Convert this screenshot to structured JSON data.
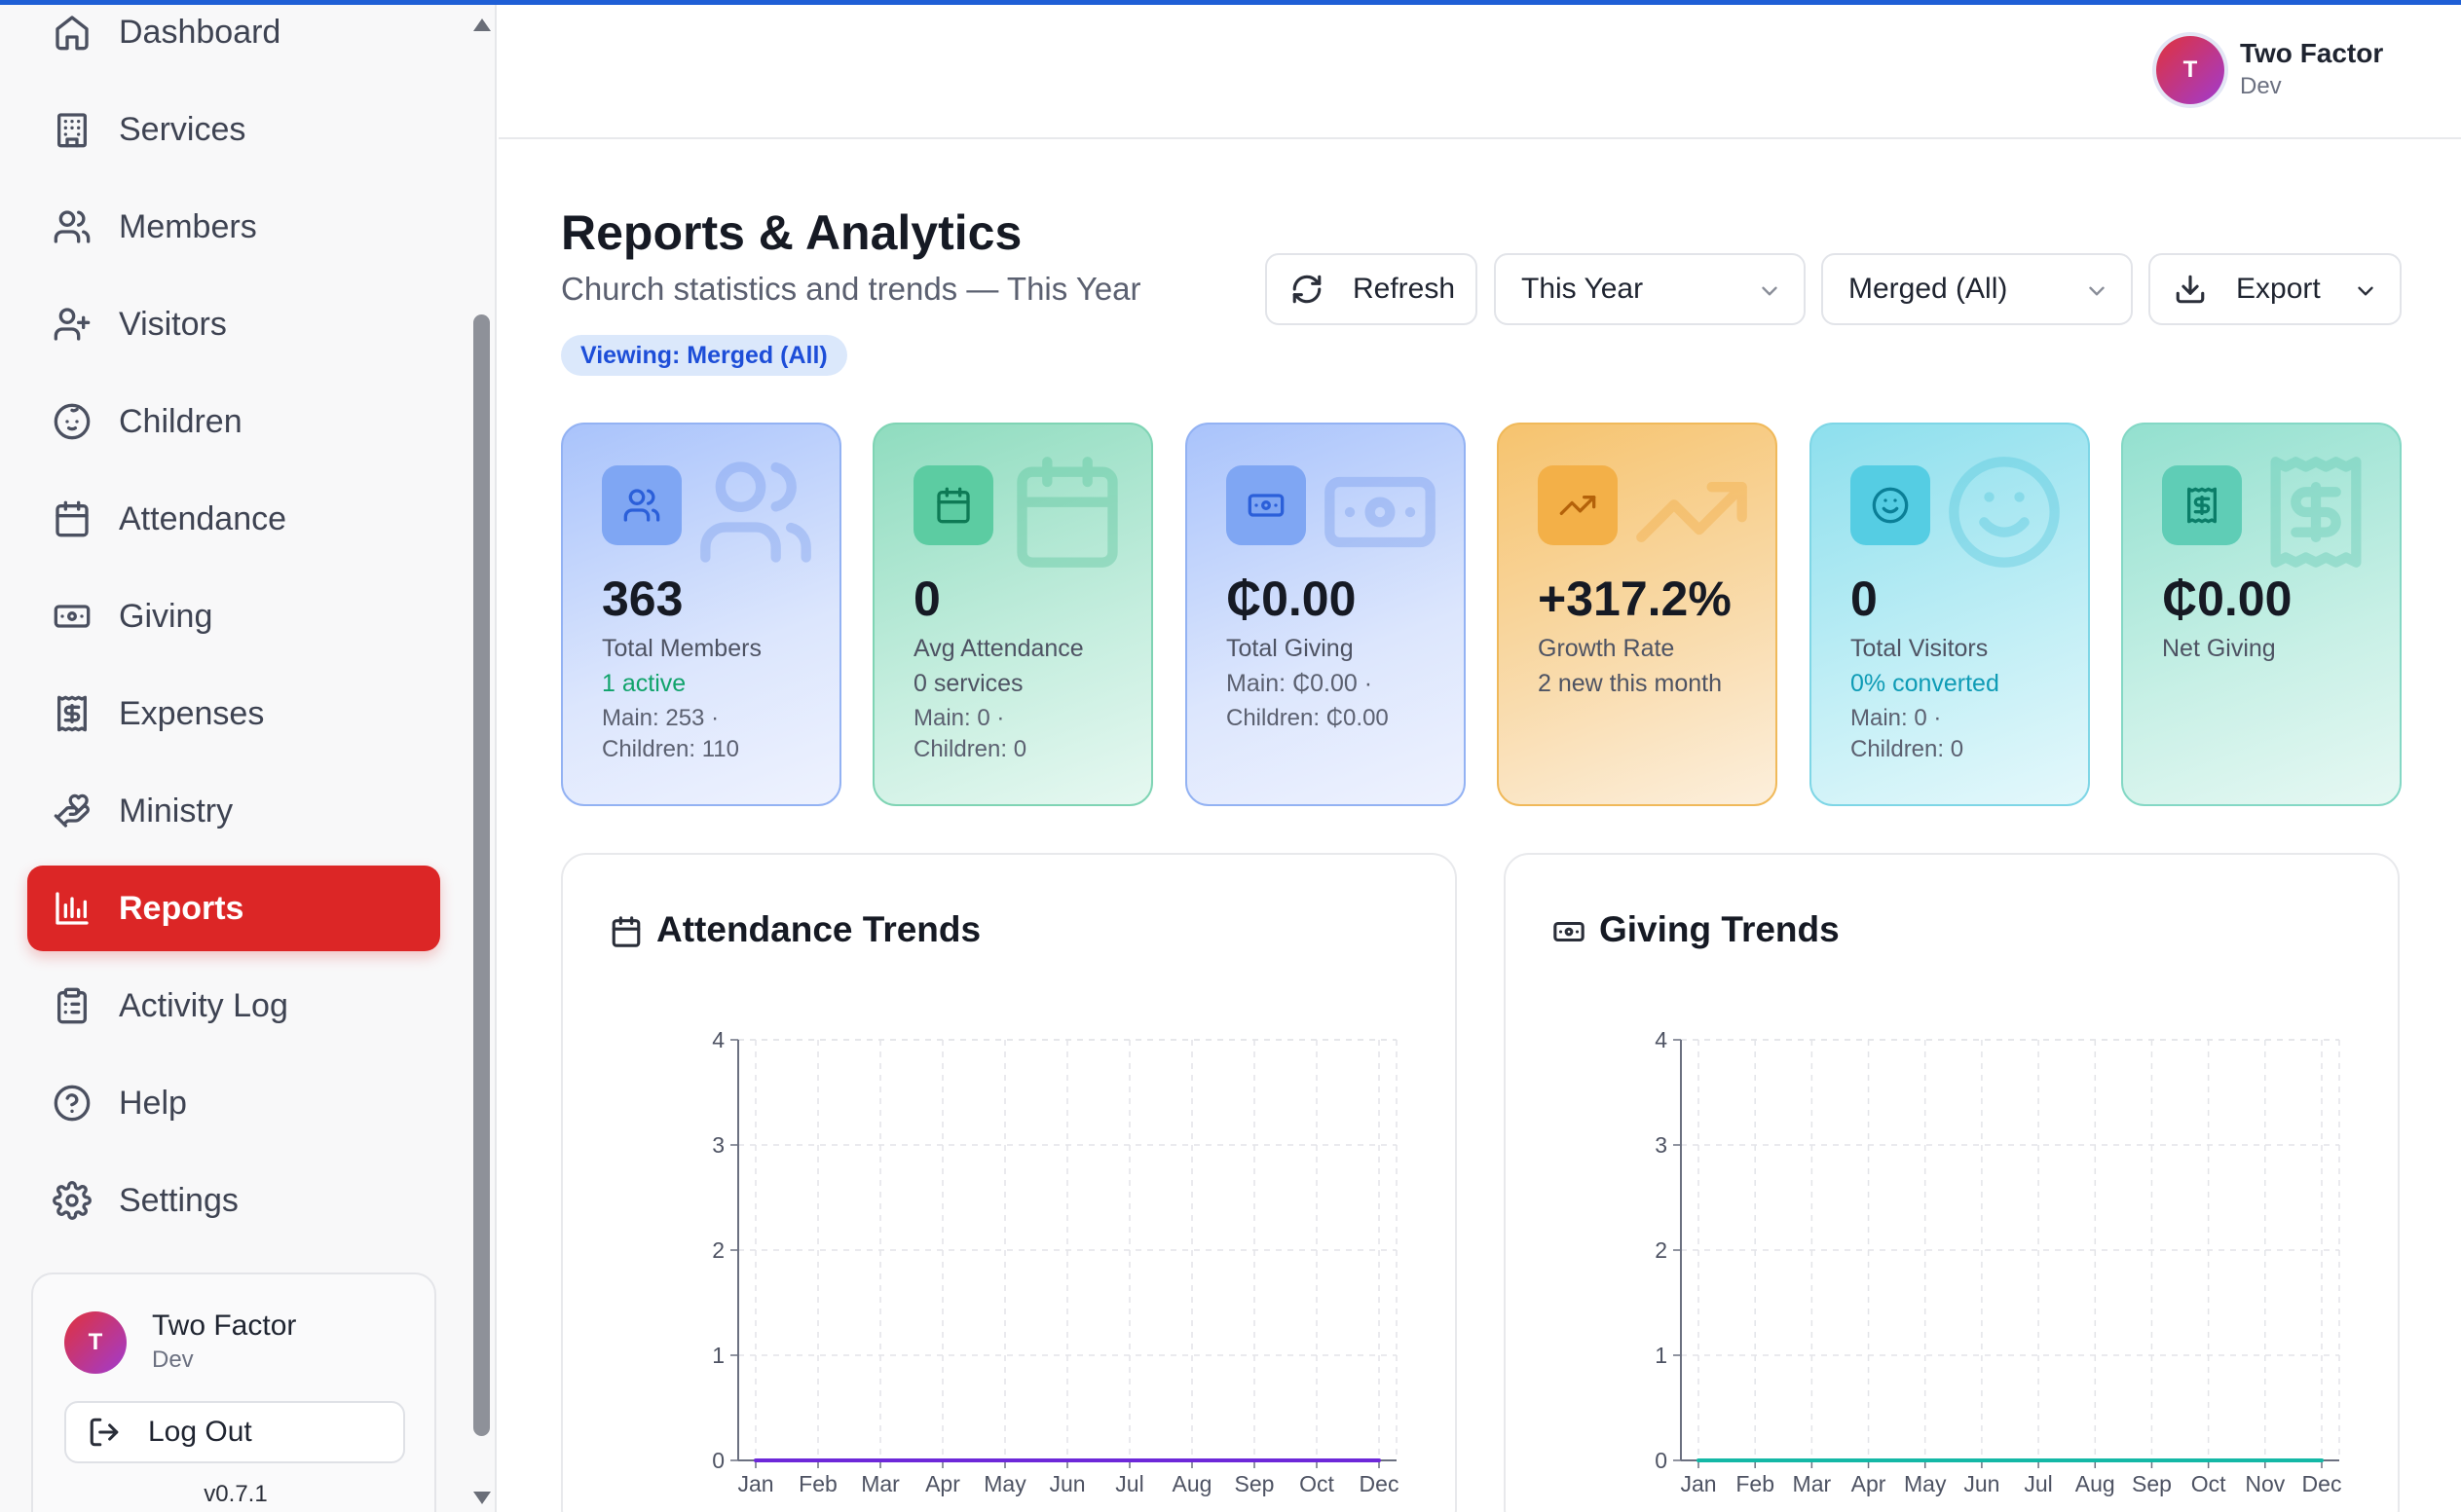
{
  "sidebar": {
    "items": [
      {
        "label": "Dashboard",
        "icon": "home-icon"
      },
      {
        "label": "Services",
        "icon": "building-icon"
      },
      {
        "label": "Members",
        "icon": "users-icon"
      },
      {
        "label": "Visitors",
        "icon": "user-plus-icon"
      },
      {
        "label": "Children",
        "icon": "baby-face-icon"
      },
      {
        "label": "Attendance",
        "icon": "calendar-icon"
      },
      {
        "label": "Giving",
        "icon": "banknote-icon"
      },
      {
        "label": "Expenses",
        "icon": "receipt-icon"
      },
      {
        "label": "Ministry",
        "icon": "hand-heart-icon"
      },
      {
        "label": "Reports",
        "icon": "bar-chart-icon",
        "active": true
      },
      {
        "label": "Activity Log",
        "icon": "clipboard-icon"
      },
      {
        "label": "Help",
        "icon": "help-circle-icon"
      },
      {
        "label": "Settings",
        "icon": "gear-icon"
      }
    ],
    "user": {
      "initial": "T",
      "name": "Two Factor",
      "role": "Dev"
    },
    "logout_label": "Log Out",
    "version": "v0.7.1"
  },
  "header": {
    "user": {
      "initial": "T",
      "name": "Two Factor",
      "role": "Dev"
    }
  },
  "page": {
    "title": "Reports & Analytics",
    "subtitle": "Church statistics and trends — This Year",
    "viewing_badge": "Viewing: Merged (All)"
  },
  "controls": {
    "refresh_label": "Refresh",
    "period_value": "This Year",
    "scope_value": "Merged (All)",
    "export_label": "Export"
  },
  "colors": {
    "accent": "#dc2626",
    "link_blue": "#1d4ed8",
    "green_text": "#10a36b",
    "teal_text": "#0e9bb5",
    "attendance_line": "#6d28d9",
    "giving_line": "#14b8a6"
  },
  "stats": [
    {
      "value": "363",
      "label": "Total Members",
      "line1": "1 active",
      "line2": "Main: 253 ·",
      "line3": "Children: 110",
      "icon": "users-icon"
    },
    {
      "value": "0",
      "label": "Avg Attendance",
      "line1": "0 services",
      "line2": "Main: 0 ·",
      "line3": "Children: 0",
      "icon": "calendar-icon"
    },
    {
      "value": "₵0.00",
      "label": "Total Giving",
      "line1": "Main: ₵0.00 ·",
      "line2": "Children: ₵0.00",
      "line3": "",
      "icon": "banknote-icon"
    },
    {
      "value": "+317.2%",
      "label": "Growth Rate",
      "line1": "2 new this month",
      "line2": "",
      "line3": "",
      "icon": "trending-up-icon"
    },
    {
      "value": "0",
      "label": "Total Visitors",
      "line1": "0% converted",
      "line2": "Main: 0 ·",
      "line3": "Children: 0",
      "icon": "smile-icon"
    },
    {
      "value": "₵0.00",
      "label": "Net Giving",
      "line1": "",
      "line2": "",
      "line3": "",
      "icon": "dollar-receipt-icon"
    }
  ],
  "chart_data": [
    {
      "type": "line",
      "title": "Attendance Trends",
      "categories": [
        "Jan",
        "Feb",
        "Mar",
        "Apr",
        "May",
        "Jun",
        "Jul",
        "Aug",
        "Sep",
        "Oct",
        "Dec"
      ],
      "series": [
        {
          "values": [
            0,
            0,
            0,
            0,
            0,
            0,
            0,
            0,
            0,
            0,
            0
          ]
        }
      ],
      "yticks": [
        "0",
        "1",
        "2",
        "3",
        "4"
      ],
      "ylim": [
        0,
        4
      ],
      "grid": true
    },
    {
      "type": "line",
      "title": "Giving Trends",
      "categories": [
        "Jan",
        "Feb",
        "Mar",
        "Apr",
        "May",
        "Jun",
        "Jul",
        "Aug",
        "Sep",
        "Oct",
        "Nov",
        "Dec"
      ],
      "series": [
        {
          "values": [
            0,
            0,
            0,
            0,
            0,
            0,
            0,
            0,
            0,
            0,
            0,
            0
          ]
        }
      ],
      "yticks": [
        "0",
        "1",
        "2",
        "3",
        "4"
      ],
      "ylim": [
        0,
        4
      ],
      "grid": true
    }
  ]
}
